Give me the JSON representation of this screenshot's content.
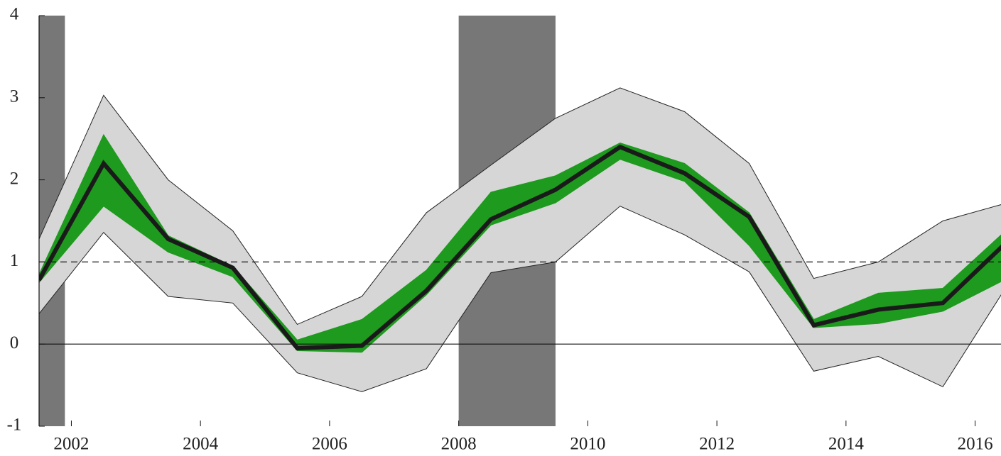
{
  "chart_data": {
    "type": "line",
    "x": [
      2001.5,
      2002.5,
      2003.5,
      2004.5,
      2005.5,
      2006.5,
      2007.5,
      2008.5,
      2009.5,
      2010.5,
      2011.5,
      2012.5,
      2013.5,
      2014.5,
      2015.5,
      2016.5
    ],
    "xlim": [
      2001.5,
      2016.5
    ],
    "xticks": [
      2002,
      2004,
      2006,
      2008,
      2010,
      2012,
      2014,
      2016
    ],
    "ylim": [
      -1,
      4
    ],
    "yticks": [
      -1,
      0,
      1,
      2,
      3,
      4
    ],
    "shaded_regions": [
      {
        "start": 2001.5,
        "end": 2001.9,
        "color": "#777777"
      },
      {
        "start": 2008.0,
        "end": 2009.5,
        "color": "#777777"
      }
    ],
    "bands": [
      {
        "color": "#d6d6d6",
        "upper": [
          1.28,
          3.03,
          2.0,
          1.38,
          0.24,
          0.58,
          1.6,
          2.18,
          2.75,
          3.12,
          2.83,
          2.2,
          0.8,
          1.0,
          1.5,
          1.72
        ],
        "lower": [
          0.37,
          1.36,
          0.58,
          0.5,
          -0.35,
          -0.58,
          -0.3,
          0.87,
          1.0,
          1.68,
          1.33,
          0.88,
          -0.33,
          -0.15,
          -0.52,
          0.72
        ]
      },
      {
        "color": "#1e9a1e",
        "upper": [
          0.85,
          2.55,
          1.32,
          0.95,
          0.05,
          0.3,
          0.9,
          1.85,
          2.05,
          2.45,
          2.2,
          1.6,
          0.3,
          0.62,
          0.68,
          1.4
        ],
        "lower": [
          0.75,
          1.68,
          1.12,
          0.82,
          -0.08,
          -0.1,
          0.6,
          1.45,
          1.72,
          2.25,
          1.98,
          1.2,
          0.2,
          0.25,
          0.4,
          0.8
        ]
      }
    ],
    "series": [
      {
        "color": "#1a1a1a",
        "values": [
          0.78,
          2.2,
          1.28,
          0.93,
          -0.05,
          -0.02,
          0.65,
          1.52,
          1.88,
          2.4,
          2.08,
          1.55,
          0.23,
          0.42,
          0.5,
          1.25
        ]
      }
    ],
    "hlines": [
      {
        "value": 1,
        "style": "dashed"
      },
      {
        "value": 0,
        "style": "solid"
      }
    ]
  }
}
